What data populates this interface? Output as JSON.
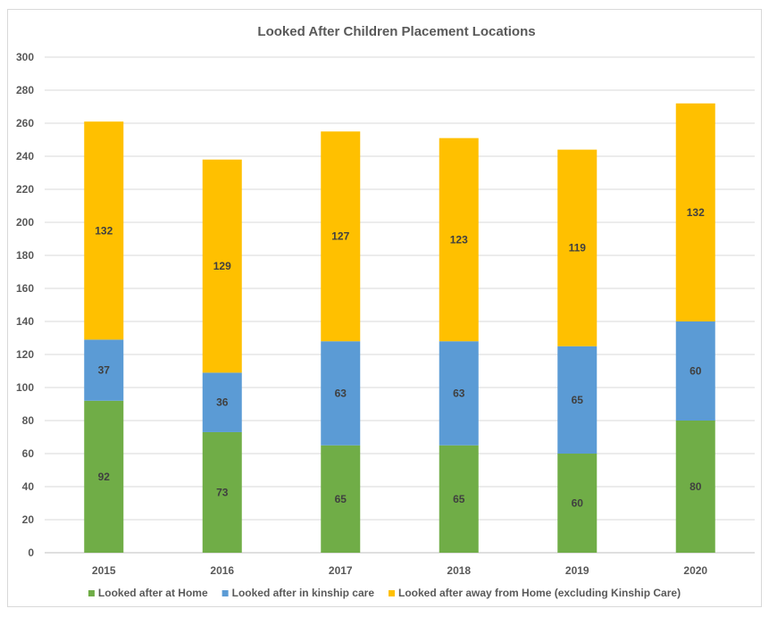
{
  "chart_data": {
    "type": "bar",
    "stacked": true,
    "title": "Looked After Children Placement Locations",
    "xlabel": "",
    "ylabel": "",
    "categories": [
      "2015",
      "2016",
      "2017",
      "2018",
      "2019",
      "2020"
    ],
    "ylim": [
      0,
      300
    ],
    "ytick_step": 20,
    "grid": true,
    "legend_position": "bottom",
    "series": [
      {
        "name": "Looked after at Home",
        "color": "#70ad47",
        "values": [
          92,
          73,
          65,
          65,
          60,
          80
        ]
      },
      {
        "name": "Looked after in kinship care",
        "color": "#5b9bd5",
        "values": [
          37,
          36,
          63,
          63,
          65,
          60
        ]
      },
      {
        "name": "Looked after away from Home (excluding Kinship Care)",
        "color": "#ffc000",
        "values": [
          132,
          129,
          127,
          123,
          119,
          132
        ]
      }
    ]
  }
}
